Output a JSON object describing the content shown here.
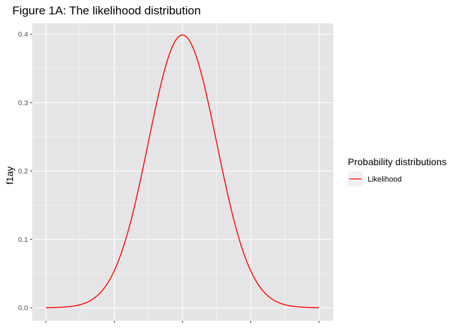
{
  "chart_data": {
    "type": "line",
    "title": "Figure 1A: The likelihood distribution",
    "xlabel": "",
    "ylabel": "f1ay",
    "xlim": [
      -4,
      4
    ],
    "ylim": [
      0,
      0.4
    ],
    "y_ticks": [
      "0.0",
      "0.1",
      "0.2",
      "0.3",
      "0.4"
    ],
    "x_ticks_labeled": false,
    "grid": true,
    "legend": {
      "title": "Probability distributions",
      "placement": "right",
      "items": [
        {
          "label": "Likelihood",
          "color": "#ff0000"
        }
      ]
    },
    "series": [
      {
        "name": "Likelihood",
        "color": "#ff0000",
        "distribution": "normal(mean=0, sd=1)",
        "x": [
          -4.0,
          -3.5,
          -3.0,
          -2.75,
          -2.5,
          -2.25,
          -2.0,
          -1.75,
          -1.5,
          -1.25,
          -1.0,
          -0.75,
          -0.5,
          -0.25,
          0.0,
          0.25,
          0.5,
          0.75,
          1.0,
          1.25,
          1.5,
          1.75,
          2.0,
          2.25,
          2.5,
          2.75,
          3.0,
          3.5,
          4.0
        ],
        "y": [
          0.0001,
          0.0009,
          0.0044,
          0.0091,
          0.0175,
          0.0317,
          0.054,
          0.0863,
          0.1295,
          0.1826,
          0.242,
          0.3011,
          0.3521,
          0.3867,
          0.3989,
          0.3867,
          0.3521,
          0.3011,
          0.242,
          0.1826,
          0.1295,
          0.0863,
          0.054,
          0.0317,
          0.0175,
          0.0091,
          0.0044,
          0.0009,
          0.0001
        ]
      }
    ]
  },
  "colors": {
    "panel_background": "#e5e5e5",
    "grid_major": "#ffffff",
    "tick_text": "#4d4d4d",
    "legend_key_background": "#f2f2f2"
  }
}
